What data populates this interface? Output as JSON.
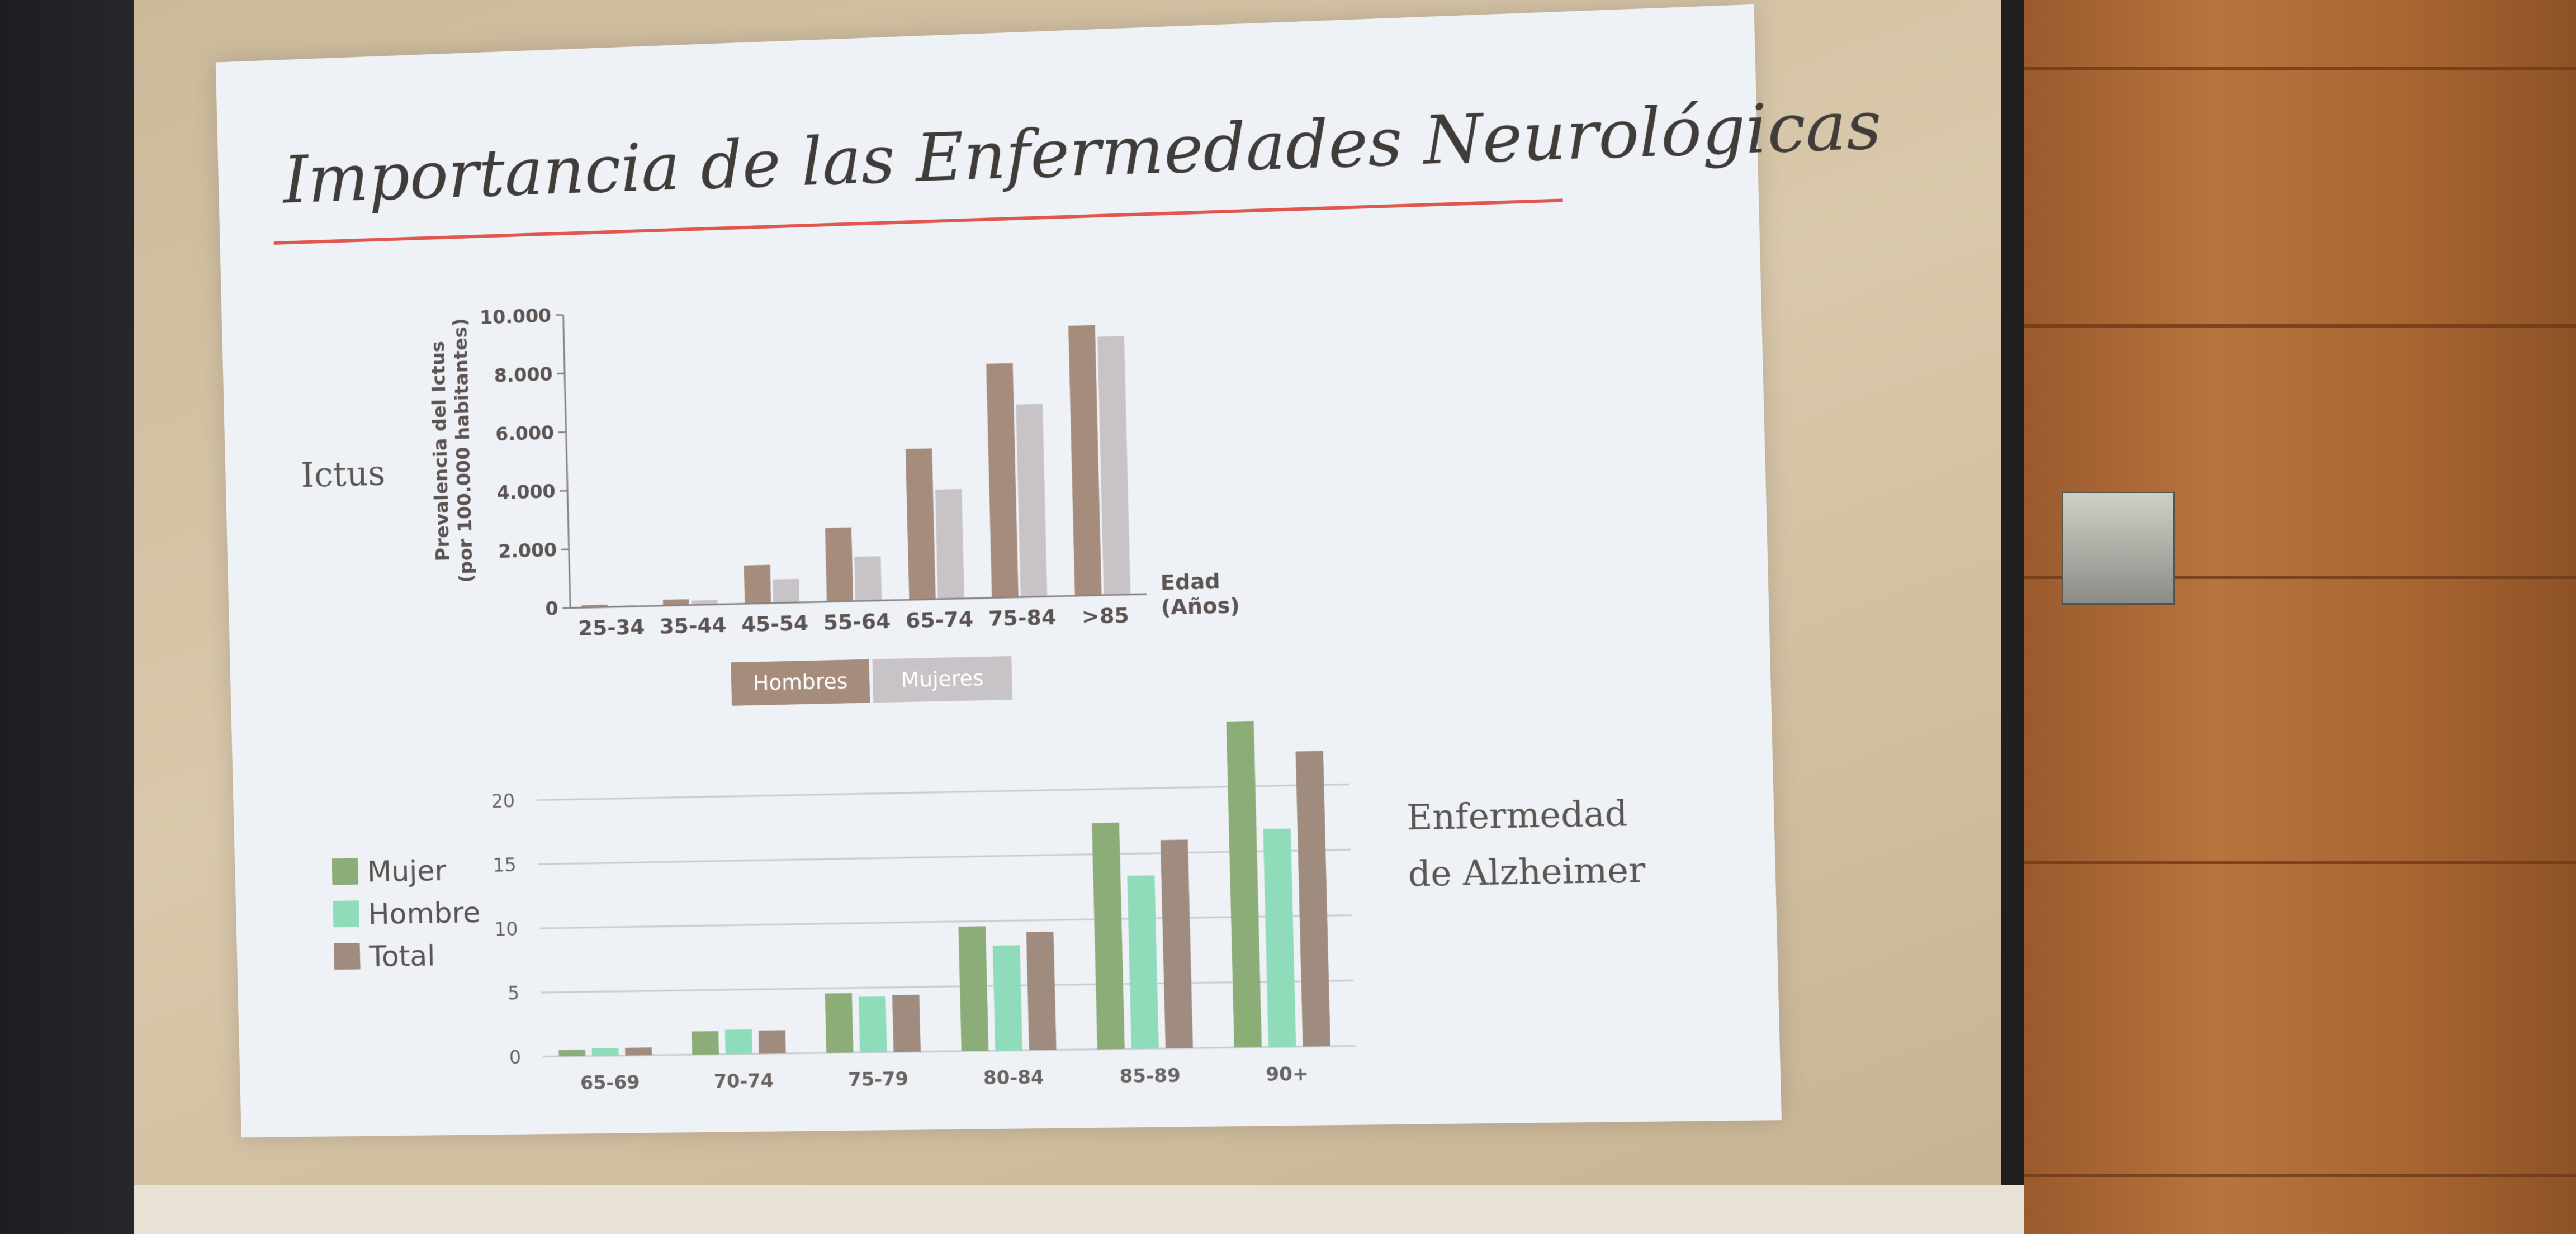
{
  "slide": {
    "title": "Importancia de las Enfermedades Neurológicas",
    "label_ictus": "Ictus",
    "label_alz_1": "Enfermedad",
    "label_alz_2": "de Alzheimer"
  },
  "colors": {
    "hombres": "#a58c7d",
    "mujeres": "#c8c3c6",
    "alz_mujer": "#8cac78",
    "alz_hombre": "#8fdcba",
    "alz_total": "#a08c7e",
    "title_rule": "#e0574f"
  },
  "chart_data": [
    {
      "type": "bar",
      "categories": [
        "25-34",
        "35-44",
        "45-54",
        "55-64",
        "65-74",
        "75-84",
        ">85"
      ],
      "series": [
        {
          "name": "Hombres",
          "values": [
            80,
            200,
            1300,
            2500,
            5100,
            7900,
            9100
          ]
        },
        {
          "name": "Mujeres",
          "values": [
            40,
            150,
            800,
            1500,
            3700,
            6500,
            8700
          ]
        }
      ],
      "title": "",
      "ylabel_1": "Prevalencia del Ictus",
      "ylabel_2": "(por 100.000 habitantes)",
      "xlabel_1": "Edad",
      "xlabel_2": "(Años)",
      "ylim": [
        0,
        10000
      ],
      "yticks": [
        0,
        2000,
        4000,
        6000,
        8000,
        10000
      ],
      "ytick_labels": [
        "0",
        "2.000",
        "4.000",
        "6.000",
        "8.000",
        "10.000"
      ],
      "legend_placement": "bottom"
    },
    {
      "type": "bar",
      "categories": [
        "65-69",
        "70-74",
        "75-79",
        "80-84",
        "85-89",
        "90+"
      ],
      "series": [
        {
          "name": "Mujer",
          "values": [
            0.5,
            1.8,
            4.6,
            9.6,
            17.4,
            25
          ]
        },
        {
          "name": "Hombre",
          "values": [
            0.6,
            1.9,
            4.3,
            8.1,
            13.3,
            16.7
          ]
        },
        {
          "name": "Total",
          "values": [
            0.6,
            1.8,
            4.4,
            9.1,
            16.0,
            22.6
          ]
        }
      ],
      "title": "",
      "ylim": [
        0,
        25
      ],
      "yticks": [
        0,
        5,
        10,
        15,
        20
      ],
      "ytick_labels": [
        "0",
        "5",
        "10",
        "15",
        "20"
      ],
      "grid": true,
      "legend_placement": "left"
    }
  ]
}
